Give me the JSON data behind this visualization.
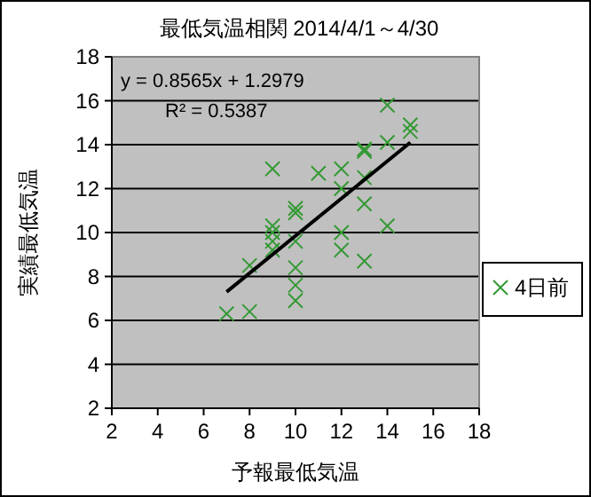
{
  "chart_data": {
    "type": "scatter",
    "title": "最低気温相関 2014/4/1～4/30",
    "xlabel": "予報最低気温",
    "ylabel": "実績最低気温",
    "xlim": [
      2,
      18
    ],
    "ylim": [
      2,
      18
    ],
    "xticks": [
      2,
      4,
      6,
      8,
      10,
      12,
      14,
      16,
      18
    ],
    "yticks": [
      2,
      4,
      6,
      8,
      10,
      12,
      14,
      16,
      18
    ],
    "grid": "y",
    "legend": "right",
    "annotations": [
      "y = 0.8565x + 1.2979",
      "R² = 0.5387"
    ],
    "series": [
      {
        "name": "4日前",
        "color": "#339933",
        "marker": "cross",
        "x": [
          7,
          8,
          8,
          9,
          9,
          9,
          9,
          9,
          10,
          10,
          10,
          10,
          10,
          10,
          11,
          12,
          12,
          12,
          12,
          13,
          13,
          13,
          13,
          13,
          14,
          14,
          14,
          15,
          15
        ],
        "values": [
          6.3,
          6.4,
          8.5,
          12.9,
          10.3,
          10,
          9.6,
          9.2,
          11.1,
          10.9,
          9.6,
          8.4,
          7.6,
          6.9,
          12.7,
          12.9,
          12,
          10,
          9.2,
          13.7,
          13.8,
          12.5,
          11.3,
          8.7,
          15.8,
          14.1,
          10.3,
          14.9,
          14.6
        ]
      },
      {
        "type": "line",
        "color": "#000000",
        "marker": "none",
        "x": [
          7,
          15
        ],
        "values": [
          7.3,
          14.1
        ]
      }
    ]
  }
}
